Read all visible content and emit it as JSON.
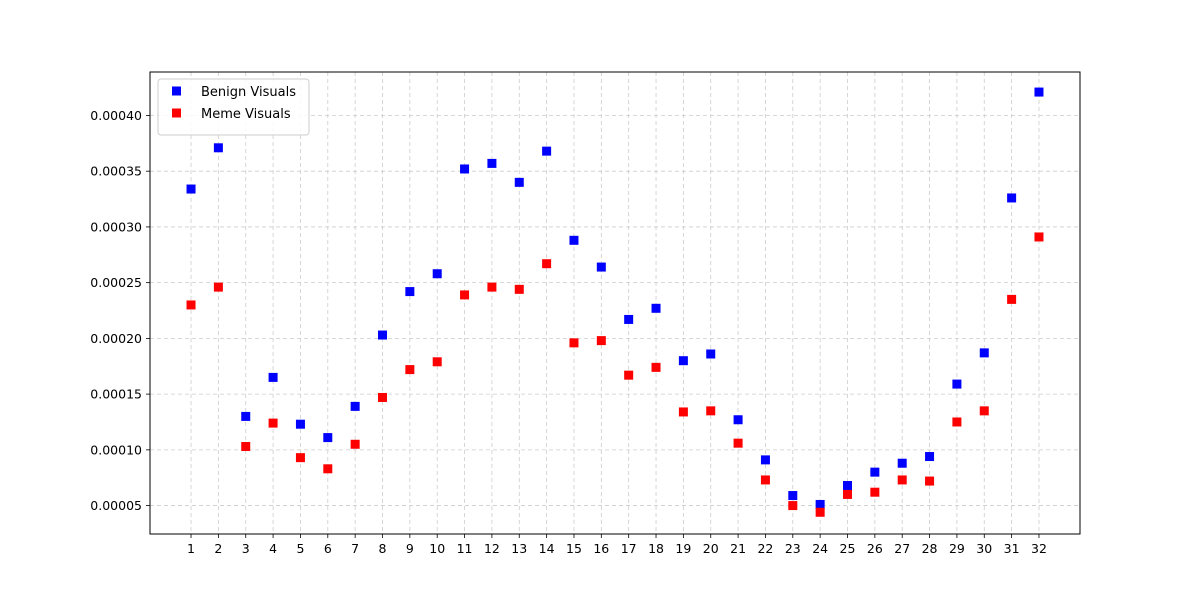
{
  "chart_data": {
    "type": "scatter",
    "title": "",
    "xlabel": "",
    "ylabel": "",
    "x": [
      1,
      2,
      3,
      4,
      5,
      6,
      7,
      8,
      9,
      10,
      11,
      12,
      13,
      14,
      15,
      16,
      17,
      18,
      19,
      20,
      21,
      22,
      23,
      24,
      25,
      26,
      27,
      28,
      29,
      30,
      31,
      32
    ],
    "x_tick_labels": [
      "1",
      "2",
      "3",
      "4",
      "5",
      "6",
      "7",
      "8",
      "9",
      "10",
      "11",
      "12",
      "13",
      "14",
      "15",
      "16",
      "17",
      "18",
      "19",
      "20",
      "21",
      "22",
      "23",
      "24",
      "25",
      "26",
      "27",
      "28",
      "29",
      "30",
      "31",
      "32"
    ],
    "xlim": [
      -0.5,
      33.5
    ],
    "ylim": [
      2.45e-05,
      0.000439
    ],
    "y_ticks": [
      5e-05,
      0.0001,
      0.00015,
      0.0002,
      0.00025,
      0.0003,
      0.00035,
      0.0004
    ],
    "y_tick_labels": [
      "0.00005",
      "0.00010",
      "0.00015",
      "0.00020",
      "0.00025",
      "0.00030",
      "0.00035",
      "0.00040"
    ],
    "grid": true,
    "legend_position": "top-left",
    "marker": "square",
    "series": [
      {
        "name": "Benign Visuals",
        "color": "#0000ff",
        "values": [
          0.000334,
          0.000371,
          0.00013,
          0.000165,
          0.000123,
          0.000111,
          0.000139,
          0.000203,
          0.000242,
          0.000258,
          0.000352,
          0.000357,
          0.00034,
          0.000368,
          0.000288,
          0.000264,
          0.000217,
          0.000227,
          0.00018,
          0.000186,
          0.000127,
          9.1e-05,
          5.9e-05,
          5.1e-05,
          6.8e-05,
          8e-05,
          8.8e-05,
          9.4e-05,
          0.000159,
          0.000187,
          0.000326,
          0.000421
        ]
      },
      {
        "name": "Meme Visuals",
        "color": "#ff0000",
        "values": [
          0.00023,
          0.000246,
          0.000103,
          0.000124,
          9.3e-05,
          8.3e-05,
          0.000105,
          0.000147,
          0.000172,
          0.000179,
          0.000239,
          0.000246,
          0.000244,
          0.000267,
          0.000196,
          0.000198,
          0.000167,
          0.000174,
          0.000134,
          0.000135,
          0.000106,
          7.3e-05,
          5e-05,
          4.4e-05,
          6e-05,
          6.2e-05,
          7.3e-05,
          7.2e-05,
          0.000125,
          0.000135,
          0.000235,
          0.000291
        ]
      }
    ]
  }
}
